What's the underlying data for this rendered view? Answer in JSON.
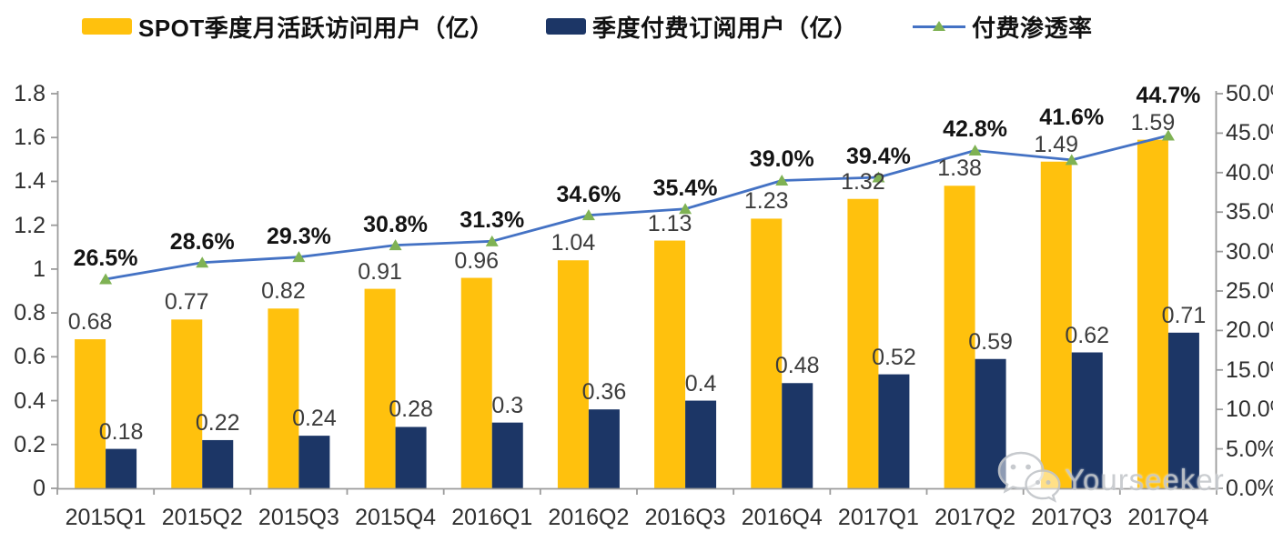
{
  "legend": {
    "items": [
      {
        "label": "SPOT季度月活跃访问用户（亿）",
        "swatch_color": "#FFC10D",
        "type": "bar"
      },
      {
        "label": "季度付费订阅用户（亿）",
        "swatch_color": "#1C3666",
        "type": "bar"
      },
      {
        "label": "付费渗透率",
        "line_color": "#4472C4",
        "marker_color": "#7FB254",
        "type": "line"
      }
    ]
  },
  "chart_data": {
    "type": "bar+line combo",
    "categories": [
      "2015Q1",
      "2015Q2",
      "2015Q3",
      "2015Q4",
      "2016Q1",
      "2016Q2",
      "2016Q3",
      "2016Q4",
      "2017Q1",
      "2017Q2",
      "2017Q3",
      "2017Q4"
    ],
    "series": [
      {
        "name": "SPOT季度月活跃访问用户（亿）",
        "type": "bar",
        "axis": "left",
        "color": "#FFC10D",
        "values": [
          0.68,
          0.77,
          0.82,
          0.91,
          0.96,
          1.04,
          1.13,
          1.23,
          1.32,
          1.38,
          1.49,
          1.59
        ],
        "labels": [
          "0.68",
          "0.77",
          "0.82",
          "0.91",
          "0.96",
          "1.04",
          "1.13",
          "1.23",
          "1.32",
          "1.38",
          "1.49",
          "1.59"
        ]
      },
      {
        "name": "季度付费订阅用户（亿）",
        "type": "bar",
        "axis": "left",
        "color": "#1C3666",
        "values": [
          0.18,
          0.22,
          0.24,
          0.28,
          0.3,
          0.36,
          0.4,
          0.48,
          0.52,
          0.59,
          0.62,
          0.71
        ],
        "labels": [
          "0.18",
          "0.22",
          "0.24",
          "0.28",
          "0.3",
          "0.36",
          "0.4",
          "0.48",
          "0.52",
          "0.59",
          "0.62",
          "0.71"
        ]
      },
      {
        "name": "付费渗透率",
        "type": "line",
        "axis": "right",
        "color": "#4472C4",
        "marker": "triangle",
        "marker_color": "#7FB254",
        "values": [
          26.5,
          28.6,
          29.3,
          30.8,
          31.3,
          34.6,
          35.4,
          39.0,
          39.4,
          42.8,
          41.6,
          44.7
        ],
        "labels": [
          "26.5%",
          "28.6%",
          "29.3%",
          "30.8%",
          "31.3%",
          "34.6%",
          "35.4%",
          "39.0%",
          "39.4%",
          "42.8%",
          "41.6%",
          "44.7%"
        ]
      }
    ],
    "left_axis": {
      "min": 0,
      "max": 1.8,
      "step": 0.2,
      "tick_labels": [
        "0",
        "0.2",
        "0.4",
        "0.6",
        "0.8",
        "1",
        "1.2",
        "1.4",
        "1.6",
        "1.8"
      ]
    },
    "right_axis": {
      "min": 0,
      "max": 50,
      "step": 5,
      "tick_labels": [
        "0.0%",
        "5.0%",
        "10.0%",
        "15.0%",
        "20.0%",
        "25.0%",
        "30.0%",
        "35.0%",
        "40.0%",
        "45.0%",
        "50.0%"
      ]
    },
    "grid": false,
    "legend_position": "top",
    "axis_color": "#9B9B9B",
    "plot_background": "#FFFFFF"
  },
  "watermark": {
    "text": "Yourseeker",
    "icon": "wechat-icon"
  }
}
